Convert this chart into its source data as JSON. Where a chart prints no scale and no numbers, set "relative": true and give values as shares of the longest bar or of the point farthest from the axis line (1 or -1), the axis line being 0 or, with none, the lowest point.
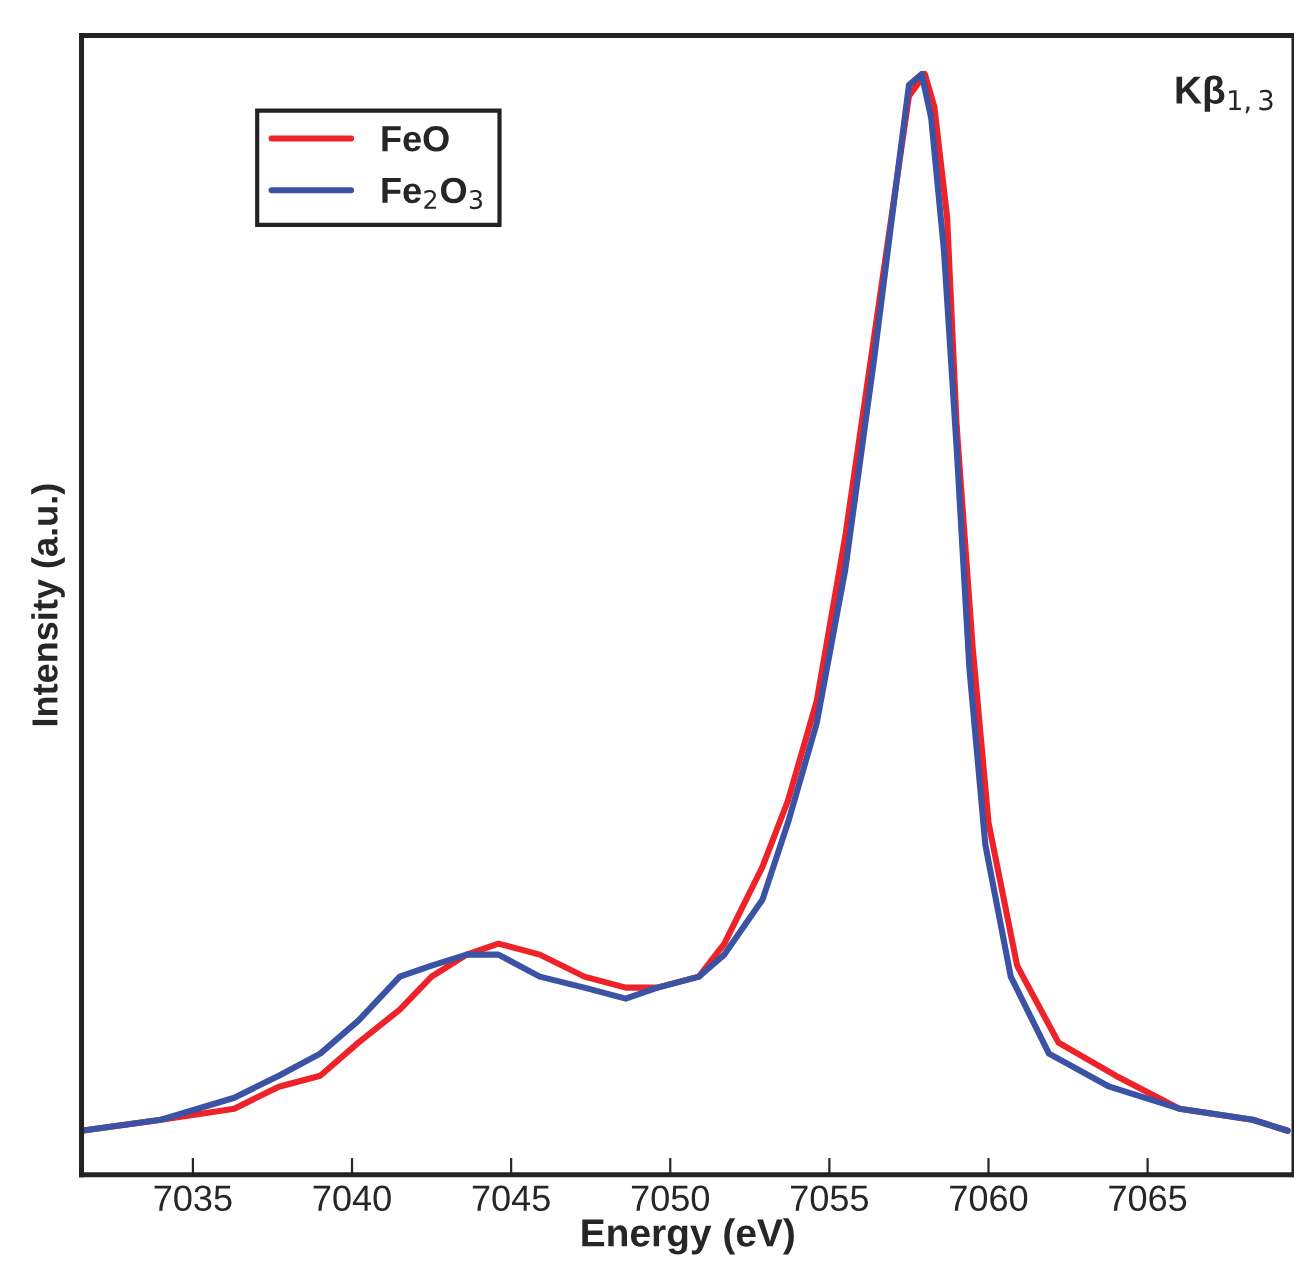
{
  "chart_data": {
    "type": "line",
    "relative": true,
    "xlabel": "Energy (eV)",
    "ylabel": "Intensity (a.u.)",
    "annotations": [
      "Kβ$_{1,3}$"
    ],
    "xlim": [
      7031.5,
      7069.6
    ],
    "xticks": [
      7035,
      7040,
      7045,
      7050,
      7055,
      7060,
      7065
    ],
    "legend": "top left",
    "grid": false,
    "series": [
      {
        "name": "FeO",
        "color": "#ee2229",
        "x": [
          7031.5,
          7034.0,
          7036.3,
          7037.7,
          7039.0,
          7040.2,
          7041.5,
          7042.5,
          7043.6,
          7044.6,
          7045.9,
          7047.3,
          7048.6,
          7049.6,
          7050.9,
          7051.7,
          7052.9,
          7053.7,
          7054.6,
          7055.5,
          7056.4,
          7057.1,
          7057.5,
          7058.0,
          7058.3,
          7058.7,
          7059.0,
          7059.5,
          7060.0,
          7060.9,
          7062.2,
          7064.0,
          7066.0,
          7068.3,
          7069.4
        ],
        "values": [
          0.04,
          0.05,
          0.06,
          0.08,
          0.09,
          0.12,
          0.15,
          0.18,
          0.2,
          0.21,
          0.2,
          0.18,
          0.17,
          0.17,
          0.18,
          0.21,
          0.28,
          0.34,
          0.43,
          0.58,
          0.76,
          0.9,
          0.98,
          1.0,
          0.97,
          0.87,
          0.68,
          0.48,
          0.32,
          0.19,
          0.12,
          0.09,
          0.06,
          0.05,
          0.04
        ]
      },
      {
        "name": "Fe$_{2}$O$_{3}$",
        "color": "#3a53a4",
        "x": [
          7031.5,
          7034.0,
          7036.3,
          7037.7,
          7039.0,
          7040.2,
          7041.5,
          7042.5,
          7043.6,
          7044.6,
          7045.9,
          7047.3,
          7048.6,
          7049.6,
          7050.9,
          7051.7,
          7052.9,
          7053.7,
          7054.6,
          7055.5,
          7056.4,
          7057.1,
          7057.5,
          7057.9,
          7058.2,
          7058.6,
          7059.0,
          7059.4,
          7059.9,
          7060.7,
          7061.9,
          7063.8,
          7066.0,
          7068.3,
          7069.4
        ],
        "values": [
          0.04,
          0.05,
          0.07,
          0.09,
          0.11,
          0.14,
          0.18,
          0.19,
          0.2,
          0.2,
          0.18,
          0.17,
          0.16,
          0.17,
          0.18,
          0.2,
          0.25,
          0.32,
          0.41,
          0.55,
          0.74,
          0.9,
          0.99,
          1.0,
          0.96,
          0.84,
          0.66,
          0.46,
          0.3,
          0.18,
          0.11,
          0.08,
          0.06,
          0.05,
          0.04
        ]
      }
    ]
  }
}
